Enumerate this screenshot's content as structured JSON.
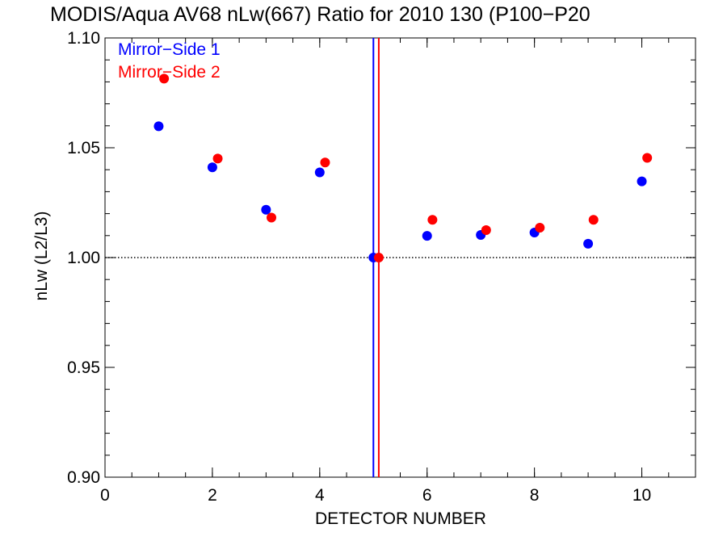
{
  "chart_data": {
    "type": "scatter",
    "title": "MODIS/Aqua AV68 nLw(667) Ratio for 2010 130 (P100−P20",
    "xlabel": "DETECTOR NUMBER",
    "ylabel": "nLw (L2/L3)",
    "xlim": [
      0,
      11
    ],
    "ylim": [
      0.9,
      1.1
    ],
    "xticks": [
      "0",
      "2",
      "4",
      "6",
      "8",
      "10"
    ],
    "yticks": [
      "0.90",
      "0.95",
      "1.00",
      "1.05",
      "1.10"
    ],
    "reference_line_y": 1.0,
    "legend_position": "top-left",
    "series": [
      {
        "name": "Mirror−Side 1",
        "color": "#0000ff",
        "x": [
          1,
          2,
          3,
          4,
          5,
          6,
          7,
          8,
          9,
          10
        ],
        "y": [
          1.0598,
          1.0411,
          1.0218,
          1.0388,
          1.0,
          1.0099,
          1.0103,
          1.0114,
          1.0063,
          1.0347
        ]
      },
      {
        "name": "Mirror−Side 2",
        "color": "#ff0000",
        "x": [
          1.1,
          2.1,
          3.1,
          4.1,
          5.1,
          6.1,
          7.1,
          8.1,
          9.1,
          10.1
        ],
        "y": [
          1.0815,
          1.0451,
          1.0182,
          1.0433,
          1.0,
          1.0172,
          1.0125,
          1.0136,
          1.0172,
          1.0454
        ]
      }
    ],
    "vertical_lines": [
      {
        "x": 5.0,
        "color": "#0000ff"
      },
      {
        "x": 5.1,
        "color": "#ff0000"
      }
    ]
  }
}
